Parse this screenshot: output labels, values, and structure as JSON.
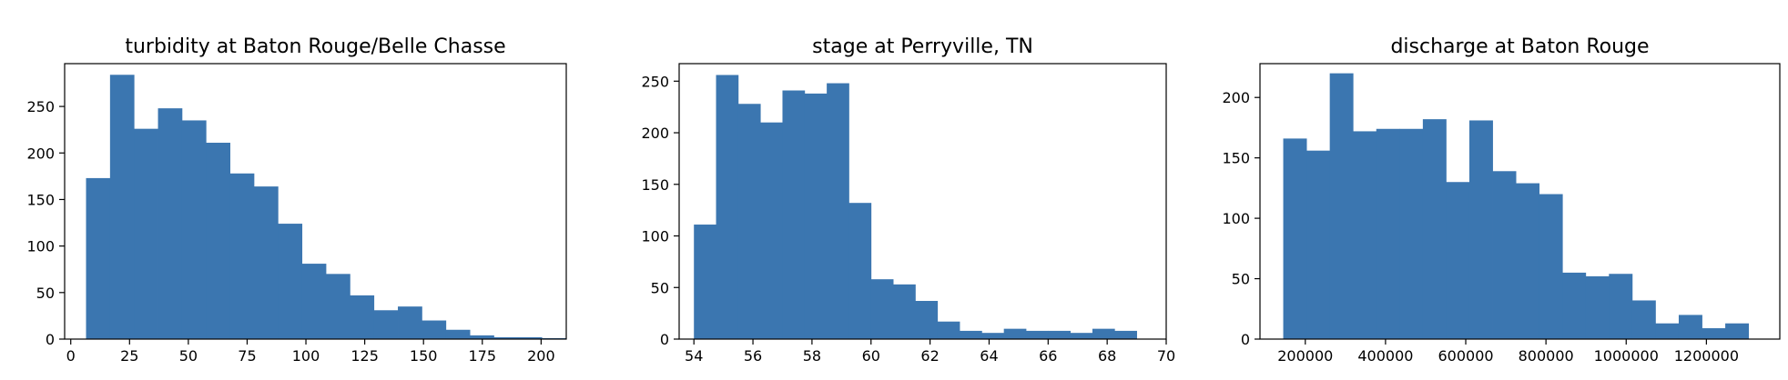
{
  "chart_data": [
    {
      "type": "bar",
      "title": "turbidity at Baton Rouge/Belle Chasse",
      "xlabel": "",
      "ylabel": "",
      "xlim": [
        -2.6,
        210.7
      ],
      "ylim": [
        0,
        296
      ],
      "bin_edges": [
        6.5,
        16.7,
        26.9,
        37.1,
        47.3,
        57.5,
        67.7,
        77.9,
        88.1,
        98.3,
        108.5,
        118.7,
        128.9,
        139.1,
        149.3,
        159.5,
        169.7,
        179.9,
        190.1,
        200.3,
        210.5
      ],
      "values": [
        173,
        284,
        226,
        248,
        235,
        211,
        178,
        164,
        124,
        81,
        70,
        47,
        31,
        35,
        20,
        10,
        4,
        2,
        2,
        1
      ],
      "xticks": [
        0,
        25,
        50,
        75,
        100,
        125,
        150,
        175,
        200
      ],
      "xtick_labels": [
        "0",
        "25",
        "50",
        "75",
        "100",
        "125",
        "150",
        "175",
        "200"
      ],
      "yticks": [
        0,
        50,
        100,
        150,
        200,
        250
      ],
      "ytick_labels": [
        "0",
        "50",
        "100",
        "150",
        "200",
        "250"
      ],
      "color": "#3b76b0"
    },
    {
      "type": "bar",
      "title": "stage at Perryville, TN",
      "xlabel": "",
      "ylabel": "",
      "xlim": [
        53.5,
        70.0
      ],
      "ylim": [
        0,
        267
      ],
      "bin_edges": [
        54.0,
        54.75,
        55.5,
        56.25,
        57.0,
        57.75,
        58.5,
        59.25,
        60.0,
        60.75,
        61.5,
        62.25,
        63.0,
        63.75,
        64.5,
        65.25,
        66.0,
        66.75,
        67.5,
        68.25,
        69.0
      ],
      "values": [
        111,
        256,
        228,
        210,
        241,
        238,
        248,
        132,
        58,
        53,
        37,
        17,
        8,
        6,
        10,
        8,
        8,
        6,
        10,
        8
      ],
      "xticks": [
        54,
        56,
        58,
        60,
        62,
        64,
        66,
        68,
        70
      ],
      "xtick_labels": [
        "54",
        "56",
        "58",
        "60",
        "62",
        "64",
        "66",
        "68",
        "70"
      ],
      "yticks": [
        0,
        50,
        100,
        150,
        200,
        250
      ],
      "ytick_labels": [
        "0",
        "50",
        "100",
        "150",
        "200",
        "250"
      ],
      "color": "#3b76b0"
    },
    {
      "type": "bar",
      "title": "discharge at Baton Rouge",
      "xlabel": "",
      "ylabel": "",
      "xlim": [
        87000,
        1383000
      ],
      "ylim": [
        0,
        228
      ],
      "bin_edges": [
        145000,
        203000,
        261000,
        319000,
        377000,
        435000,
        493000,
        551000,
        609000,
        667000,
        725000,
        783000,
        841000,
        899000,
        957000,
        1015000,
        1073000,
        1131000,
        1189000,
        1247000,
        1305000
      ],
      "values": [
        166,
        156,
        220,
        172,
        174,
        174,
        182,
        130,
        181,
        139,
        129,
        120,
        55,
        52,
        54,
        32,
        13,
        20,
        9,
        13
      ],
      "xticks": [
        200000,
        400000,
        600000,
        800000,
        1000000,
        1200000
      ],
      "xtick_labels": [
        "200000",
        "400000",
        "600000",
        "800000",
        "1000000",
        "1200000"
      ],
      "yticks": [
        0,
        50,
        100,
        150,
        200
      ],
      "ytick_labels": [
        "0",
        "50",
        "100",
        "150",
        "200"
      ],
      "color": "#3b76b0"
    }
  ]
}
